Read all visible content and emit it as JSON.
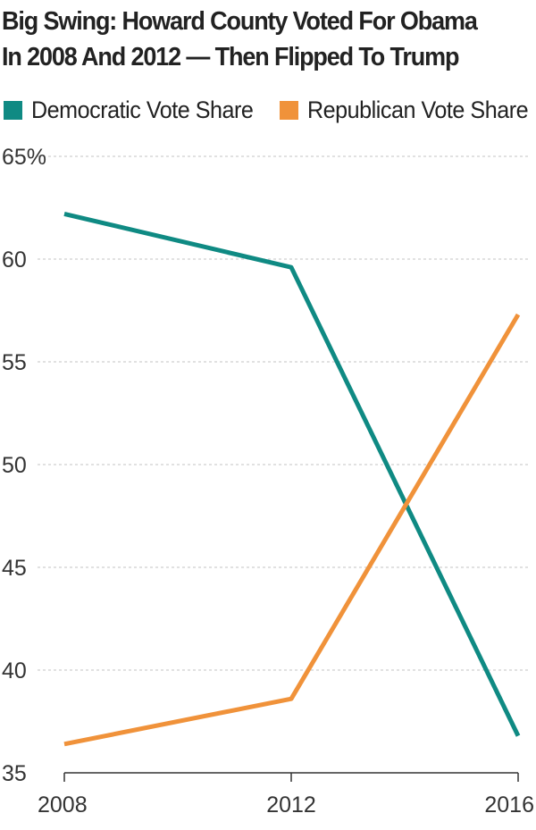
{
  "title": "Big Swing: Howard County Voted For Obama In 2008 And 2012 — Then Flipped To Trump",
  "legend": [
    {
      "label": "Democratic Vote Share",
      "color": "#0f8a83"
    },
    {
      "label": "Republican Vote Share",
      "color": "#f0923a"
    }
  ],
  "chart_data": {
    "type": "line",
    "title": "Big Swing: Howard County Voted For Obama In 2008 And 2012 — Then Flipped To Trump",
    "xlabel": "",
    "ylabel": "",
    "x": [
      2008,
      2012,
      2016
    ],
    "x_tick_labels": [
      "2008",
      "2012",
      "2016"
    ],
    "y_tick_labels": [
      "65%",
      "60",
      "55",
      "50",
      "45",
      "40",
      "35"
    ],
    "y_ticks": [
      65,
      60,
      55,
      50,
      45,
      40,
      35
    ],
    "ylim": [
      35,
      65
    ],
    "grid": true,
    "legend_position": "top",
    "series": [
      {
        "name": "Democratic Vote Share",
        "color": "#0f8a83",
        "values": [
          62.2,
          59.6,
          36.8
        ]
      },
      {
        "name": "Republican Vote Share",
        "color": "#f0923a",
        "values": [
          36.4,
          38.6,
          57.3
        ]
      }
    ]
  }
}
